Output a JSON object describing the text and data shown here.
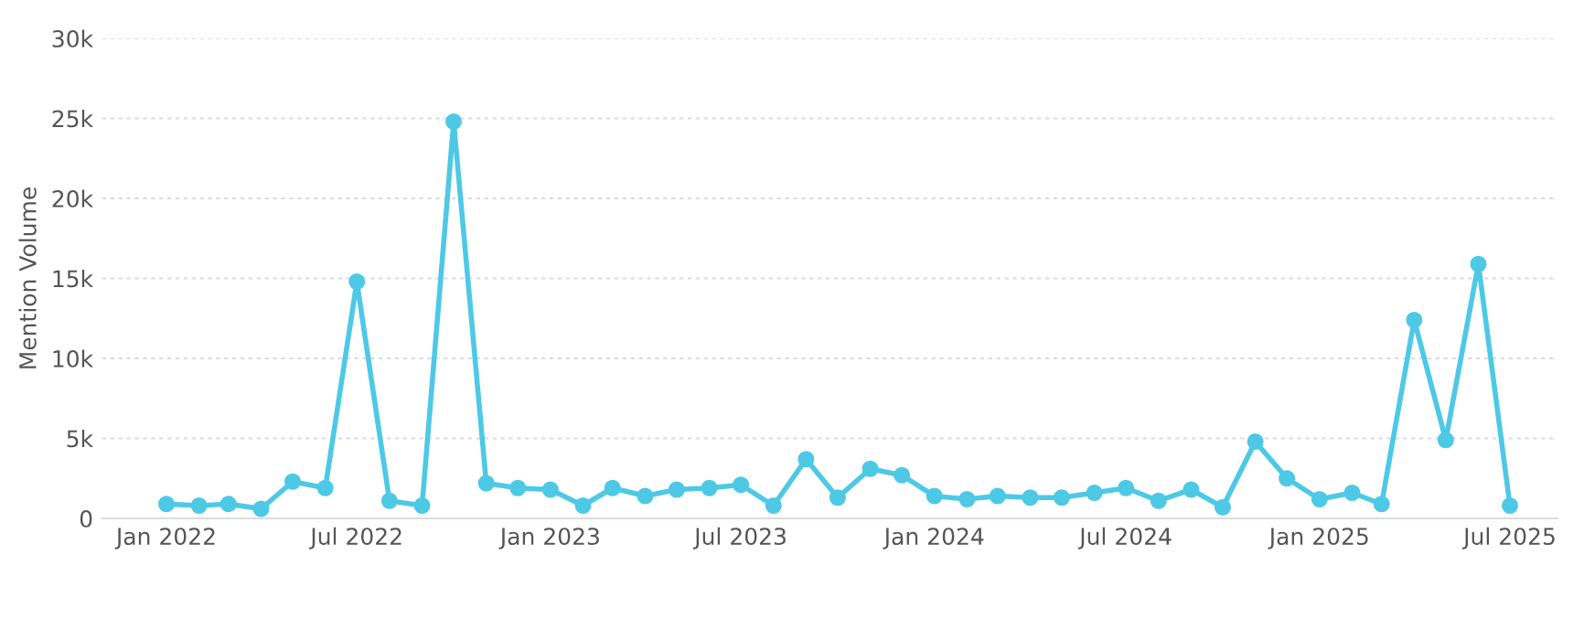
{
  "chart_data": {
    "type": "line",
    "ylabel": "Mention Volume",
    "x": [
      "2022-01",
      "2022-02",
      "2022-03",
      "2022-04",
      "2022-05",
      "2022-06",
      "2022-07",
      "2022-08",
      "2022-09",
      "2022-10",
      "2022-11",
      "2022-12",
      "2023-01",
      "2023-02",
      "2023-03",
      "2023-04",
      "2023-05",
      "2023-06",
      "2023-07",
      "2023-08",
      "2023-09",
      "2023-10",
      "2023-11",
      "2023-12",
      "2024-01",
      "2024-02",
      "2024-03",
      "2024-04",
      "2024-05",
      "2024-06",
      "2024-07",
      "2024-08",
      "2024-09",
      "2024-10",
      "2024-11",
      "2024-12",
      "2025-01",
      "2025-02",
      "2025-03",
      "2025-04",
      "2025-05",
      "2025-06",
      "2025-07"
    ],
    "series": [
      {
        "color": "#4dc9e6",
        "values": [
          900,
          800,
          900,
          600,
          2300,
          1900,
          14800,
          1100,
          800,
          24800,
          2200,
          1900,
          1800,
          800,
          1900,
          1400,
          1800,
          1900,
          2100,
          800,
          3700,
          1300,
          3100,
          2700,
          1400,
          1200,
          1400,
          1300,
          1300,
          1600,
          1900,
          1100,
          1800,
          700,
          4800,
          2500,
          1200,
          1600,
          900,
          12400,
          4900,
          15900,
          800
        ]
      }
    ],
    "xlim": [
      "2021-11-01",
      "2025-08-15"
    ],
    "xticks": [
      {
        "value": "2022-01",
        "label": "Jan 2022"
      },
      {
        "value": "2022-07",
        "label": "Jul 2022"
      },
      {
        "value": "2023-01",
        "label": "Jan 2023"
      },
      {
        "value": "2023-07",
        "label": "Jul 2023"
      },
      {
        "value": "2024-01",
        "label": "Jan 2024"
      },
      {
        "value": "2024-07",
        "label": "Jul 2024"
      },
      {
        "value": "2025-01",
        "label": "Jan 2025"
      },
      {
        "value": "2025-07",
        "label": "Jul 2025"
      }
    ],
    "ylim": [
      0,
      30000
    ],
    "yticks": [
      {
        "value": 0,
        "label": "0"
      },
      {
        "value": 5000,
        "label": "5k"
      },
      {
        "value": 10000,
        "label": "10k"
      },
      {
        "value": 15000,
        "label": "15k"
      },
      {
        "value": 20000,
        "label": "20k"
      },
      {
        "value": 25000,
        "label": "25k"
      },
      {
        "value": 30000,
        "label": "30k"
      }
    ],
    "grid": "y",
    "marker": "circle",
    "line_style": "solid"
  }
}
